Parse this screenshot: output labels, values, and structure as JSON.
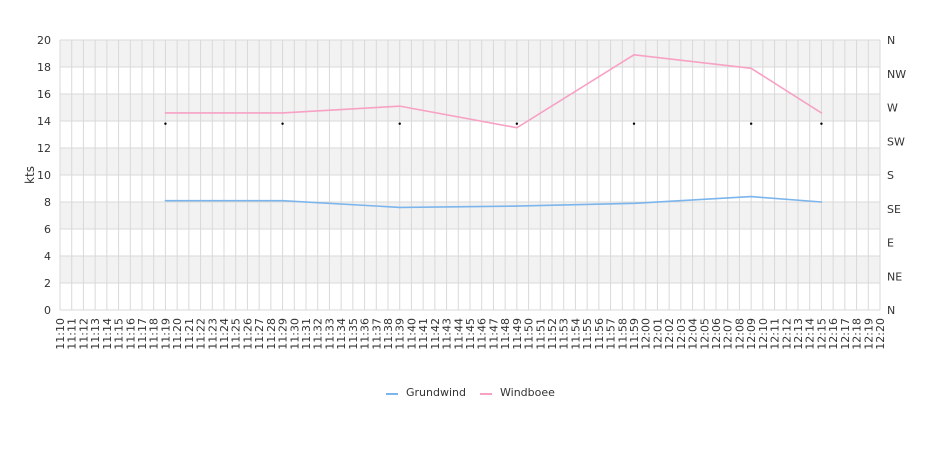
{
  "chart_data": {
    "type": "line",
    "title": "",
    "xlabel": "",
    "ylabel": "kts",
    "ylim": [
      0,
      20
    ],
    "y_ticks": [
      "0",
      "2",
      "4",
      "6",
      "8",
      "10",
      "12",
      "14",
      "16",
      "18",
      "20"
    ],
    "y2_ticks": [
      "N",
      "NE",
      "E",
      "SE",
      "S",
      "SW",
      "W",
      "NW",
      "N"
    ],
    "x_ticks": [
      "11:10",
      "11:11",
      "11:12",
      "11:13",
      "11:14",
      "11:15",
      "11:16",
      "11:17",
      "11:18",
      "11:19",
      "11:20",
      "11:21",
      "11:22",
      "11:23",
      "11:24",
      "11:25",
      "11:26",
      "11:27",
      "11:28",
      "11:29",
      "11:30",
      "11:31",
      "11:32",
      "11:33",
      "11:34",
      "11:35",
      "11:36",
      "11:37",
      "11:38",
      "11:39",
      "11:40",
      "11:41",
      "11:42",
      "11:43",
      "11:44",
      "11:45",
      "11:46",
      "11:47",
      "11:48",
      "11:49",
      "11:50",
      "11:51",
      "11:52",
      "11:53",
      "11:54",
      "11:55",
      "11:56",
      "11:57",
      "11:58",
      "11:59",
      "12:00",
      "12:01",
      "12:02",
      "12:03",
      "12:04",
      "12:05",
      "12:06",
      "12:07",
      "12:08",
      "12:09",
      "12:10",
      "12:11",
      "12:12",
      "12:13",
      "12:14",
      "12:15",
      "12:16",
      "12:17",
      "12:18",
      "12:19",
      "12:20"
    ],
    "x": [
      "11:19",
      "11:29",
      "11:39",
      "11:49",
      "11:59",
      "12:09",
      "12:15"
    ],
    "series": [
      {
        "name": "Grundwind",
        "color": "#7cb5ec",
        "values": [
          8.1,
          8.1,
          7.6,
          7.7,
          7.9,
          8.4,
          8.0
        ]
      },
      {
        "name": "Windboee",
        "color": "#f7a1c4",
        "values": [
          14.6,
          14.6,
          15.1,
          13.5,
          18.9,
          17.9,
          14.6
        ]
      }
    ],
    "direction": {
      "values": [
        13.8,
        13.8,
        13.8,
        13.8,
        13.8,
        13.8,
        13.8
      ],
      "color": "#000000"
    },
    "grid": true,
    "band_color": "#f2f2f2",
    "grid_color": "#d9d9d9",
    "legend_position": "bottom"
  }
}
